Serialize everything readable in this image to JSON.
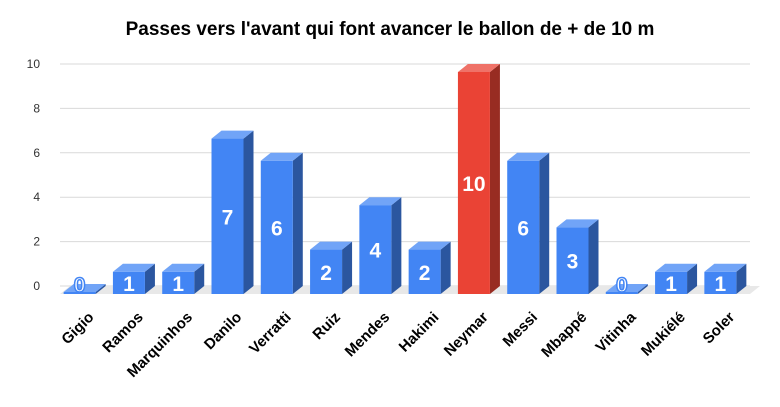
{
  "chart_data": {
    "type": "bar",
    "title": "Passes vers l'avant qui font avancer le ballon de + de 10 m",
    "categories": [
      "Gigio",
      "Ramos",
      "Marquinhos",
      "Danilo",
      "Verratti",
      "Ruiz",
      "Mendes",
      "Hakimi",
      "Neymar",
      "Messi",
      "Mbappé",
      "Vitinha",
      "Mukiélé",
      "Soler"
    ],
    "values": [
      0,
      1,
      1,
      7,
      6,
      2,
      4,
      2,
      10,
      6,
      3,
      0,
      1,
      1
    ],
    "data_labels": [
      "0",
      "1",
      "1",
      "7",
      "6",
      "2",
      "4",
      "2",
      "10",
      "6",
      "3",
      "0",
      "1",
      "1"
    ],
    "highlight_category": "Neymar",
    "colors": {
      "default": "#4285f4",
      "highlight": "#ea4335"
    },
    "ylim": [
      0,
      10
    ],
    "yticks": [
      "0",
      "2",
      "4",
      "6",
      "8",
      "10"
    ],
    "grid": true,
    "style": "3d-bar"
  }
}
